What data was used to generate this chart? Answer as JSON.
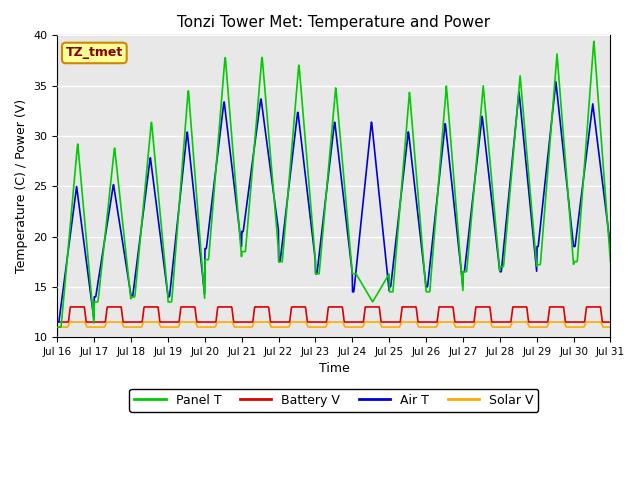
{
  "title": "Tonzi Tower Met: Temperature and Power",
  "xlabel": "Time",
  "ylabel": "Temperature (C) / Power (V)",
  "annotation": "TZ_tmet",
  "ylim": [
    10,
    40
  ],
  "yticks": [
    10,
    15,
    20,
    25,
    30,
    35,
    40
  ],
  "x_tick_labels": [
    "Jul 16",
    "Jul 17",
    "Jul 18",
    "Jul 19",
    "Jul 20",
    "Jul 21",
    "Jul 22",
    "Jul 23",
    "Jul 24",
    "Jul 25",
    "Jul 26",
    "Jul 27",
    "Jul 28",
    "Jul 29",
    "Jul 30",
    "Jul 31"
  ],
  "panel_t_color": "#00cc00",
  "battery_v_color": "#dd0000",
  "air_t_color": "#0000dd",
  "solar_v_color": "#ffaa00",
  "bg_color": "#e8e8e8",
  "legend_labels": [
    "Panel T",
    "Battery V",
    "Air T",
    "Solar V"
  ],
  "n_days": 15,
  "panel_t_peaks": [
    29.3,
    28.9,
    31.5,
    34.7,
    38.0,
    38.0,
    37.2,
    34.9,
    13.5,
    34.4,
    35.0,
    35.0,
    36.0,
    38.2,
    39.5
  ],
  "panel_t_troughs": [
    11.0,
    13.5,
    14.0,
    13.5,
    17.7,
    18.5,
    17.5,
    16.3,
    16.3,
    14.5,
    14.5,
    16.5,
    17.0,
    17.2,
    17.5
  ],
  "air_t_peaks": [
    25.0,
    25.2,
    27.9,
    30.5,
    33.5,
    33.8,
    32.5,
    31.5,
    31.5,
    30.5,
    31.3,
    32.0,
    34.4,
    35.4,
    33.2
  ],
  "air_t_troughs": [
    11.5,
    14.0,
    14.0,
    14.0,
    18.8,
    20.5,
    17.5,
    16.3,
    14.5,
    15.0,
    15.0,
    16.5,
    16.5,
    19.0,
    19.0
  ],
  "battery_v_base": 11.5,
  "battery_v_peak": 13.0,
  "solar_v_base": 11.0,
  "solar_v_plateau": 11.5,
  "solar_v_peak": 11.8,
  "pts_per_day": 96
}
